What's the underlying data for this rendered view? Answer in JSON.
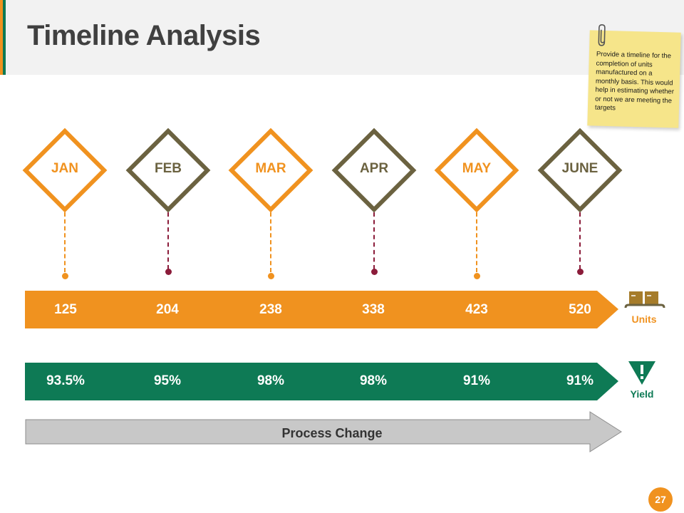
{
  "slide": {
    "title": "Timeline Analysis",
    "page_number": "27"
  },
  "note": {
    "text": "Provide a timeline for the completion of units manufactured on a monthly basis. This would help in estimating whether or not we are meeting the targets"
  },
  "months": [
    "JAN",
    "FEB",
    "MAR",
    "APR",
    "MAY",
    "JUNE"
  ],
  "units": {
    "label": "Units",
    "values": [
      "125",
      "204",
      "238",
      "338",
      "423",
      "520"
    ]
  },
  "yield": {
    "label": "Yield",
    "values": [
      "93.5%",
      "95%",
      "98%",
      "98%",
      "91%",
      "91%"
    ]
  },
  "process": {
    "label": "Process Change"
  },
  "colors": {
    "orange": "#f0921f",
    "olive": "#6b6240",
    "green": "#0e7a55",
    "maroon": "#8b1c3a",
    "grey_arrow": "#c8c8c8",
    "note_yellow": "#f6e58a"
  }
}
